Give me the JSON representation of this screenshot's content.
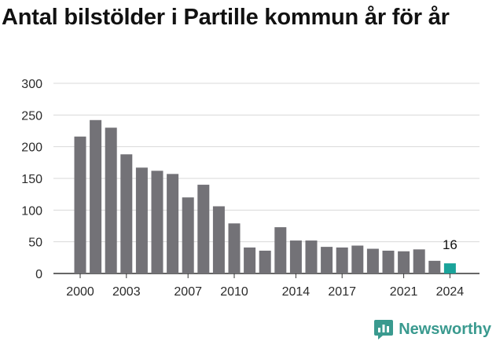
{
  "title": "Antal bilstölder i Partille kommun år för år",
  "brand": {
    "name": "Newsworthy",
    "icon": "newsworthy-logo-icon",
    "color": "#3a9a8f"
  },
  "colors": {
    "bar": "#737277",
    "highlight": "#1aa39a",
    "grid": "#d9d9d9",
    "axis": "#333333"
  },
  "chart_data": {
    "type": "bar",
    "title": "Antal bilstölder i Partille kommun år för år",
    "xlabel": "",
    "ylabel": "",
    "ylim": [
      0,
      300
    ],
    "yticks": [
      0,
      50,
      100,
      150,
      200,
      250,
      300
    ],
    "xtick_labels": [
      "2000",
      "2003",
      "2007",
      "2010",
      "2014",
      "2017",
      "2021",
      "2024"
    ],
    "categories": [
      "2000",
      "2001",
      "2002",
      "2003",
      "2004",
      "2005",
      "2006",
      "2007",
      "2008",
      "2009",
      "2010",
      "2011",
      "2012",
      "2013",
      "2014",
      "2015",
      "2016",
      "2017",
      "2018",
      "2019",
      "2020",
      "2021",
      "2022",
      "2023",
      "2024"
    ],
    "values": [
      216,
      242,
      230,
      188,
      167,
      162,
      157,
      120,
      140,
      106,
      79,
      41,
      36,
      73,
      52,
      52,
      42,
      41,
      44,
      39,
      36,
      35,
      38,
      20,
      16
    ],
    "highlight_index": 24,
    "data_labels": [
      {
        "category": "2024",
        "value": 16,
        "text": "16"
      }
    ],
    "grid": true,
    "legend": "none"
  }
}
